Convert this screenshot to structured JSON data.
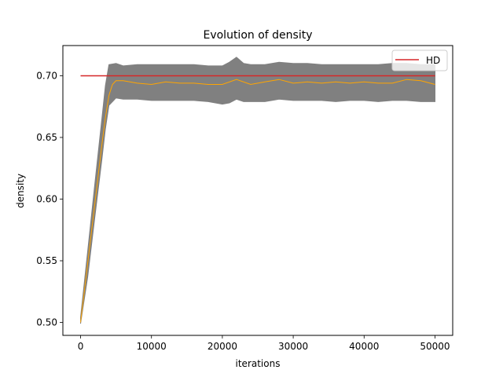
{
  "chart_data": {
    "type": "line",
    "title": "Evolution of density",
    "xlabel": "iterations",
    "ylabel": "density",
    "xlim": [
      -2500,
      52500
    ],
    "ylim": [
      0.4895,
      0.7245
    ],
    "xticks": [
      0,
      10000,
      20000,
      30000,
      40000,
      50000
    ],
    "yticks": [
      0.5,
      0.55,
      0.6,
      0.65,
      0.7
    ],
    "xtick_labels": [
      "0",
      "10000",
      "20000",
      "30000",
      "40000",
      "50000"
    ],
    "ytick_labels": [
      "0.50",
      "0.55",
      "0.60",
      "0.65",
      "0.70"
    ],
    "grid": false,
    "legend_position": "top-right",
    "series": [
      {
        "name": "HD",
        "kind": "line",
        "color": "#d62728",
        "x": [
          0,
          50000
        ],
        "y": [
          0.7,
          0.7
        ]
      },
      {
        "kind": "line",
        "color": "#ffa500",
        "x": [
          0,
          1000,
          2000,
          3000,
          3500,
          4000,
          4500,
          5000,
          6000,
          8000,
          10000,
          12000,
          14000,
          16000,
          18000,
          20000,
          22000,
          24000,
          26000,
          28000,
          30000,
          32000,
          34000,
          36000,
          38000,
          40000,
          42000,
          44000,
          46000,
          48000,
          50000
        ],
        "y": [
          0.5,
          0.548,
          0.596,
          0.644,
          0.666,
          0.684,
          0.693,
          0.696,
          0.696,
          0.694,
          0.693,
          0.695,
          0.694,
          0.694,
          0.693,
          0.693,
          0.697,
          0.693,
          0.695,
          0.697,
          0.694,
          0.695,
          0.694,
          0.695,
          0.694,
          0.695,
          0.694,
          0.694,
          0.697,
          0.696,
          0.693
        ]
      },
      {
        "kind": "band",
        "color": "#808080",
        "x": [
          0,
          1000,
          2000,
          3000,
          3500,
          4000,
          5000,
          6000,
          8000,
          10000,
          12000,
          14000,
          16000,
          18000,
          20000,
          21000,
          22000,
          23000,
          24000,
          26000,
          28000,
          30000,
          32000,
          34000,
          36000,
          38000,
          40000,
          42000,
          44000,
          46000,
          48000,
          50000
        ],
        "upper": [
          0.504,
          0.558,
          0.612,
          0.665,
          0.692,
          0.709,
          0.71,
          0.708,
          0.709,
          0.709,
          0.709,
          0.709,
          0.709,
          0.708,
          0.708,
          0.711,
          0.715,
          0.71,
          0.709,
          0.709,
          0.711,
          0.71,
          0.71,
          0.709,
          0.709,
          0.709,
          0.709,
          0.709,
          0.71,
          0.71,
          0.709,
          0.709
        ],
        "lower": [
          0.499,
          0.537,
          0.585,
          0.632,
          0.657,
          0.676,
          0.682,
          0.681,
          0.681,
          0.68,
          0.68,
          0.68,
          0.68,
          0.679,
          0.677,
          0.678,
          0.681,
          0.679,
          0.679,
          0.679,
          0.681,
          0.68,
          0.68,
          0.68,
          0.679,
          0.68,
          0.68,
          0.679,
          0.68,
          0.68,
          0.679,
          0.679
        ]
      }
    ]
  }
}
